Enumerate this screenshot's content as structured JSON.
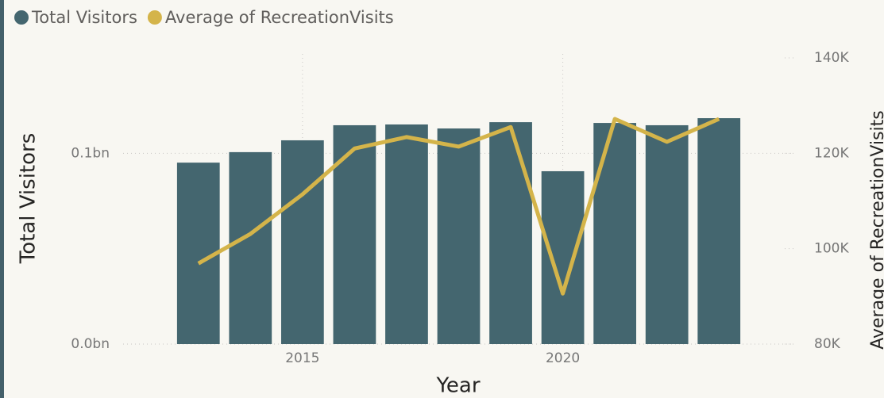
{
  "chart_data": {
    "type": "bar_line",
    "x_label": "Year",
    "y_label": "Total Visitors",
    "y2_label": "Average of RecreationVisits",
    "x": [
      2013,
      2014,
      2015,
      2016,
      2017,
      2018,
      2019,
      2020,
      2021,
      2022,
      2023
    ],
    "xlim": [
      2012.5,
      2023.5
    ],
    "xticks": [
      2015,
      2020
    ],
    "ylim": [
      0,
      150000000
    ],
    "yticks": [
      {
        "value": 0,
        "label": "0.0bn"
      },
      {
        "value": 100000000,
        "label": "0.1bn"
      }
    ],
    "y2lim": [
      80000,
      140000
    ],
    "y2ticks": [
      {
        "value": 80000,
        "label": "80K"
      },
      {
        "value": 100000,
        "label": "100K"
      },
      {
        "value": 120000,
        "label": "120K"
      },
      {
        "value": 140000,
        "label": "140K"
      }
    ],
    "grid": true,
    "legend": "top-left",
    "series": [
      {
        "name": "Total Visitors",
        "type": "bar",
        "color": "#44666f",
        "values": [
          95100000,
          100600000,
          106800000,
          114700000,
          115100000,
          113000000,
          116300000,
          90600000,
          115900000,
          114700000,
          118400000
        ]
      },
      {
        "name": "Average of RecreationVisits",
        "type": "line",
        "axis": "y2",
        "color": "#d4b44a",
        "values": [
          96900,
          103100,
          111400,
          121000,
          123400,
          121400,
          125500,
          90600,
          127200,
          122400,
          127200
        ]
      }
    ]
  }
}
